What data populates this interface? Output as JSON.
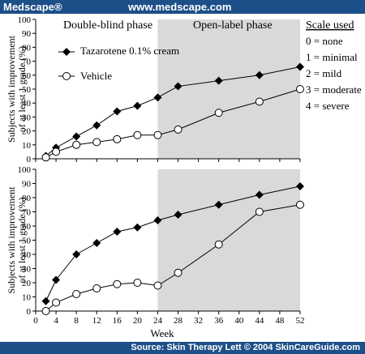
{
  "header": {
    "logo": "Medscape®",
    "url": "www.medscape.com"
  },
  "footer": {
    "source": "Source: Skin Therapy Lett © 2004 SkinCareGuide.com"
  },
  "colors": {
    "brand_bar": "#1d4f88",
    "shaded_phase": "#d9d9d9"
  },
  "scale": {
    "title": "Scale used",
    "items": [
      "0 = none",
      "1 = minimal",
      "2 = mild",
      "3 = moderate",
      "4 = severe"
    ]
  },
  "phases": {
    "left": "Double-blind phase",
    "right": "Open-label phase"
  },
  "chart_data": [
    {
      "type": "line",
      "ylabel": "Subjects with improvement of at least 1 grade (%)",
      "xlim": [
        0,
        52
      ],
      "ylim": [
        0,
        100
      ],
      "xticks": [
        0,
        4,
        8,
        12,
        16,
        20,
        24,
        28,
        32,
        36,
        40,
        44,
        48,
        52
      ],
      "yticks": [
        0,
        10,
        20,
        30,
        40,
        50,
        60,
        70,
        80,
        90,
        100
      ],
      "shaded_x_range": [
        24,
        52
      ],
      "legend": {
        "position": "top-left"
      },
      "series": [
        {
          "name": "Tazarotene 0.1% cream",
          "marker": "diamond-filled",
          "x": [
            2,
            4,
            8,
            12,
            16,
            20,
            24,
            28,
            36,
            44,
            52
          ],
          "y": [
            2,
            8,
            16,
            24,
            34,
            38,
            44,
            52,
            56,
            60,
            66
          ]
        },
        {
          "name": "Vehicle",
          "marker": "circle-open",
          "x": [
            2,
            4,
            8,
            12,
            16,
            20,
            24,
            28,
            36,
            44,
            52
          ],
          "y": [
            1,
            5,
            10,
            12,
            14,
            17,
            17,
            21,
            33,
            41,
            50
          ]
        }
      ]
    },
    {
      "type": "line",
      "ylabel": "Subjects with improvement of at least 1 grade (%)",
      "xlabel": "Week",
      "xlim": [
        0,
        52
      ],
      "ylim": [
        0,
        100
      ],
      "xticks": [
        0,
        4,
        8,
        12,
        16,
        20,
        24,
        28,
        32,
        36,
        40,
        44,
        48,
        52
      ],
      "yticks": [
        0,
        10,
        20,
        30,
        40,
        50,
        60,
        70,
        80,
        90,
        100
      ],
      "shaded_x_range": [
        24,
        52
      ],
      "series": [
        {
          "name": "Tazarotene 0.1% cream",
          "marker": "diamond-filled",
          "x": [
            2,
            4,
            8,
            12,
            16,
            20,
            24,
            28,
            36,
            44,
            52
          ],
          "y": [
            7,
            22,
            40,
            48,
            56,
            59,
            64,
            68,
            75,
            82,
            88
          ]
        },
        {
          "name": "Vehicle",
          "marker": "circle-open",
          "x": [
            2,
            4,
            8,
            12,
            16,
            20,
            24,
            28,
            36,
            44,
            52
          ],
          "y": [
            0,
            6,
            12,
            16,
            19,
            20,
            18,
            27,
            47,
            70,
            75
          ]
        }
      ]
    }
  ]
}
